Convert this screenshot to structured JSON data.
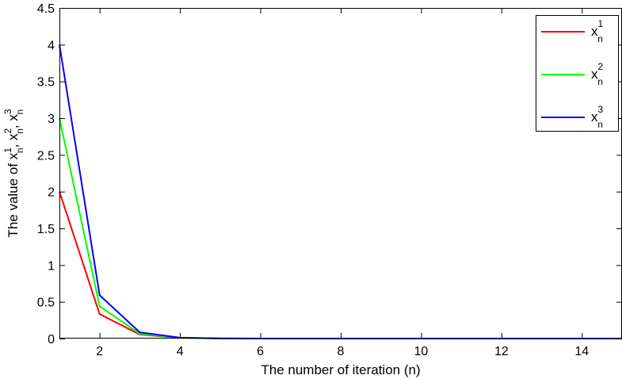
{
  "chart_data": {
    "type": "line",
    "xlabel": "The number of iteration (n)",
    "ylabel": {
      "prefix": "The value of ",
      "terms": [
        {
          "base": "x",
          "sup": "1",
          "sub": "n"
        },
        {
          "base": "x",
          "sup": "2",
          "sub": "n"
        },
        {
          "base": "x",
          "sup": "3",
          "sub": "n"
        }
      ],
      "separator": ", "
    },
    "xlim": [
      1,
      15
    ],
    "ylim": [
      0,
      4.5
    ],
    "xticks": [
      2,
      4,
      6,
      8,
      10,
      12,
      14
    ],
    "xtick_labels": [
      "2",
      "4",
      "6",
      "8",
      "10",
      "12",
      "14"
    ],
    "yticks": [
      0,
      0.5,
      1,
      1.5,
      2,
      2.5,
      3,
      3.5,
      4,
      4.5
    ],
    "ytick_labels": [
      "0",
      "0.5",
      "1",
      "1.5",
      "2",
      "2.5",
      "3",
      "3.5",
      "4",
      "4.5"
    ],
    "grid": false,
    "legend_position": "top-right",
    "x": [
      1,
      2,
      3,
      4,
      5,
      6,
      7,
      8,
      9,
      10,
      11,
      12,
      13,
      14,
      15
    ],
    "series": [
      {
        "id": "x1",
        "legend": {
          "base": "x",
          "sup": "1",
          "sub": "n"
        },
        "color": "#ff0000",
        "values": [
          2,
          0.333,
          0.055,
          0.009,
          0.0015,
          0.0003,
          0,
          0,
          0,
          0,
          0,
          0,
          0,
          0,
          0
        ]
      },
      {
        "id": "x2",
        "legend": {
          "base": "x",
          "sup": "2",
          "sub": "n"
        },
        "color": "#00ff00",
        "values": [
          3,
          0.44,
          0.065,
          0.01,
          0.0015,
          0.0002,
          0,
          0,
          0,
          0,
          0,
          0,
          0,
          0,
          0
        ]
      },
      {
        "id": "x3",
        "legend": {
          "base": "x",
          "sup": "3",
          "sub": "n"
        },
        "color": "#0000ff",
        "values": [
          4,
          0.59,
          0.085,
          0.012,
          0.0018,
          0.0003,
          0,
          0,
          0,
          0,
          0,
          0,
          0,
          0,
          0
        ]
      }
    ]
  }
}
